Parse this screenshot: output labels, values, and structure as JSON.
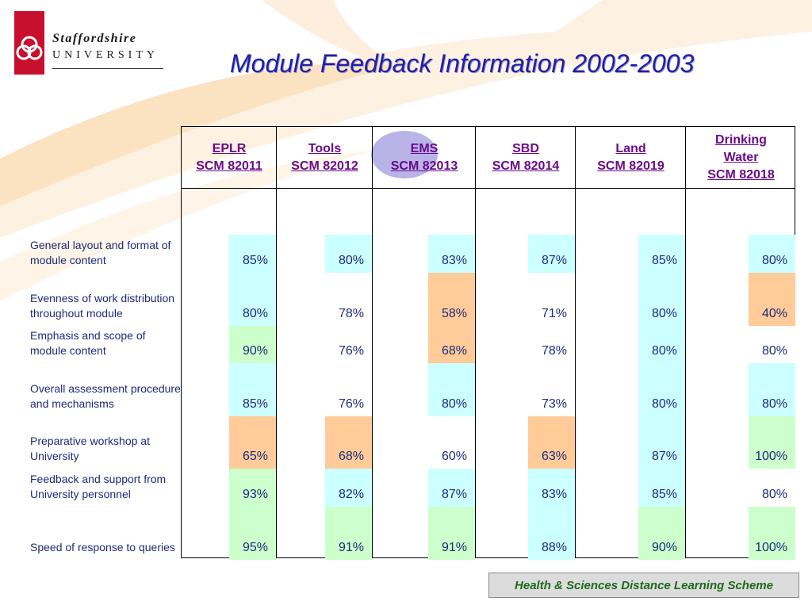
{
  "logo": {
    "name": "Staffordshire",
    "subtitle": "UNIVERSITY"
  },
  "title": "Module Feedback Information 2002-2003",
  "colors": {
    "blue": "#ccffff",
    "green": "#ccffcc",
    "orange": "#ffcc99",
    "white": "#ffffff"
  },
  "columns": [
    {
      "line1": "EPLR",
      "line2": "SCM 82011"
    },
    {
      "line1": "Tools",
      "line2": "SCM 82012"
    },
    {
      "line1": "EMS",
      "line2": "SCM 82013"
    },
    {
      "line1": "SBD",
      "line2": "SCM 82014"
    },
    {
      "line1": "Land",
      "line2": "SCM 82019"
    },
    {
      "line1": "Drinking",
      "line1b": "Water",
      "line2": "SCM 82018"
    }
  ],
  "rows": [
    {
      "label": "General layout and format of module content",
      "values": [
        "85%",
        "80%",
        "83%",
        "87%",
        "85%",
        "80%"
      ],
      "colors": [
        "blue",
        "blue",
        "blue",
        "blue",
        "blue",
        "blue"
      ]
    },
    {
      "label": "Evenness of work distribution throughout module",
      "values": [
        "80%",
        "78%",
        "58%",
        "71%",
        "80%",
        "40%"
      ],
      "colors": [
        "blue",
        "white",
        "orange",
        "white",
        "blue",
        "orange"
      ]
    },
    {
      "label": "Emphasis and scope of module content",
      "values": [
        "90%",
        "76%",
        "68%",
        "78%",
        "80%",
        "80%"
      ],
      "colors": [
        "green",
        "white",
        "orange",
        "white",
        "blue",
        "white"
      ]
    },
    {
      "label": "Overall assessment procedure and mechanisms",
      "values": [
        "85%",
        "76%",
        "80%",
        "73%",
        "80%",
        "80%"
      ],
      "colors": [
        "blue",
        "white",
        "blue",
        "white",
        "blue",
        "blue"
      ]
    },
    {
      "label": "Preparative workshop at University",
      "values": [
        "65%",
        "68%",
        "60%",
        "63%",
        "87%",
        "100%"
      ],
      "colors": [
        "orange",
        "orange",
        "white",
        "orange",
        "blue",
        "green"
      ]
    },
    {
      "label": "Feedback and support from University personnel",
      "values": [
        "93%",
        "82%",
        "87%",
        "83%",
        "85%",
        "80%"
      ],
      "colors": [
        "green",
        "blue",
        "blue",
        "blue",
        "blue",
        "white"
      ]
    },
    {
      "label": "Speed of response to queries",
      "values": [
        "95%",
        "91%",
        "91%",
        "88%",
        "90%",
        "100%"
      ],
      "colors": [
        "green",
        "green",
        "green",
        "blue",
        "green",
        "green"
      ]
    }
  ],
  "footer": "Health & Sciences Distance Learning Scheme"
}
